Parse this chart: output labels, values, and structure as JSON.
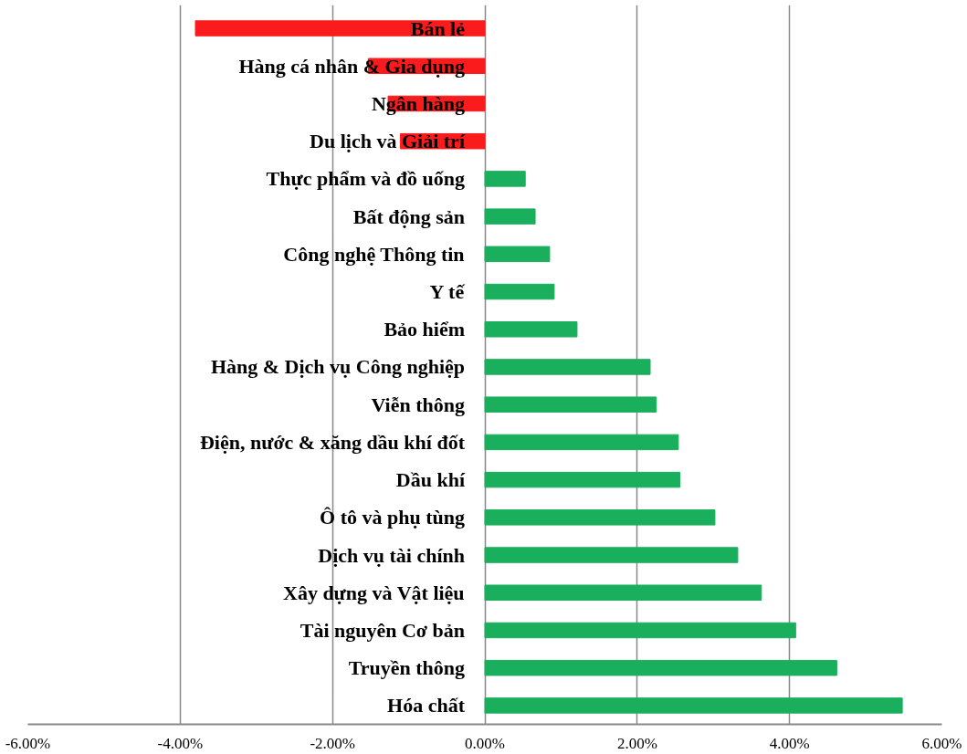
{
  "chart_data": {
    "type": "bar",
    "orientation": "horizontal",
    "categories": [
      "Bán lẻ",
      "Hàng cá nhân & Gia dụng",
      "Ngân hàng",
      "Du lịch và Giải trí",
      "Thực phẩm và đồ uống",
      "Bất động sản",
      "Công nghệ Thông tin",
      "Y tế",
      "Bảo hiểm",
      "Hàng & Dịch vụ Công nghiệp",
      "Viễn thông",
      "Điện, nước & xăng dầu khí đốt",
      "Dầu khí",
      "Ô tô và phụ tùng",
      "Dịch vụ tài chính",
      "Xây dựng và Vật liệu",
      "Tài nguyên Cơ bản",
      "Truyền thông",
      "Hóa chất"
    ],
    "values": [
      -3.8,
      -1.53,
      -1.27,
      -1.11,
      0.53,
      0.66,
      0.85,
      0.91,
      1.21,
      2.17,
      2.25,
      2.54,
      2.56,
      3.02,
      3.32,
      3.63,
      4.08,
      4.62,
      5.48
    ],
    "colors": [
      "#fa1c1c",
      "#fa1c1c",
      "#fa1c1c",
      "#fa1c1c",
      "#1aaf5c",
      "#1aaf5c",
      "#1aaf5c",
      "#1aaf5c",
      "#1aaf5c",
      "#1aaf5c",
      "#1aaf5c",
      "#1aaf5c",
      "#1aaf5c",
      "#1aaf5c",
      "#1aaf5c",
      "#1aaf5c",
      "#1aaf5c",
      "#1aaf5c",
      "#1aaf5c"
    ],
    "xlim": [
      -6,
      6
    ],
    "xticks": [
      {
        "value": -6,
        "label": "-6.00%"
      },
      {
        "value": -4,
        "label": "-4.00%"
      },
      {
        "value": -2,
        "label": "-2.00%"
      },
      {
        "value": 0,
        "label": "0.00%"
      },
      {
        "value": 2,
        "label": "2.00%"
      },
      {
        "value": 4,
        "label": "4.00%"
      },
      {
        "value": 6,
        "label": "6.00%"
      }
    ],
    "grid": "x"
  }
}
